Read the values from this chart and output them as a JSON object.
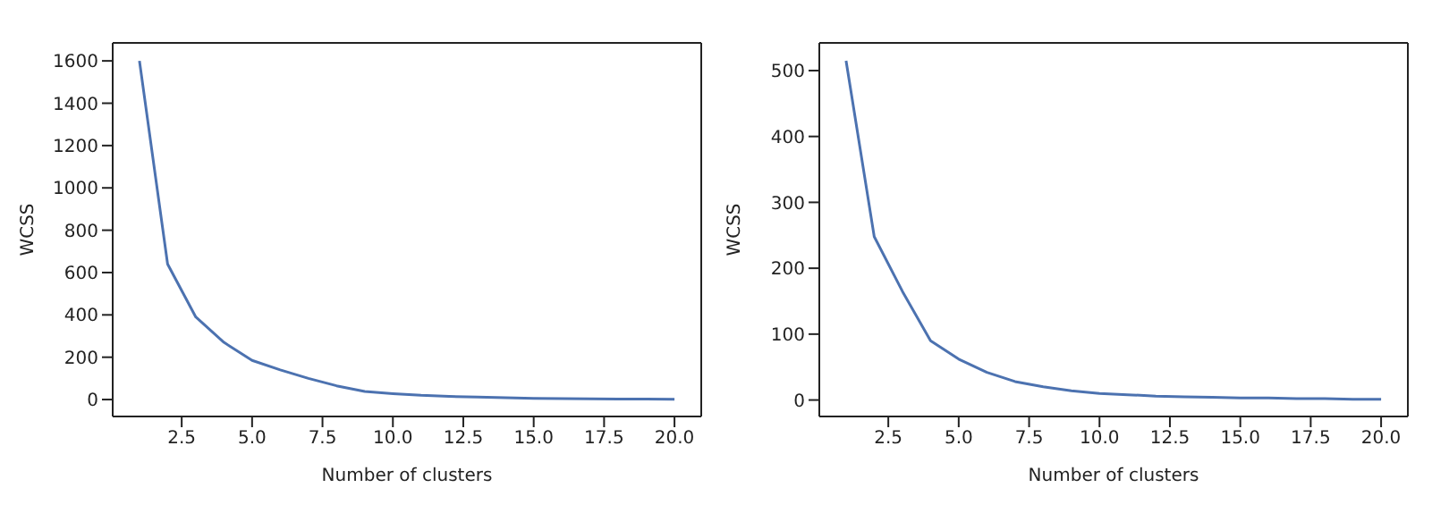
{
  "chart_data": [
    {
      "type": "line",
      "xlabel": "Number of clusters",
      "ylabel": "WCSS",
      "x": [
        1,
        2,
        3,
        4,
        5,
        6,
        7,
        8,
        9,
        10,
        11,
        12,
        13,
        14,
        15,
        16,
        17,
        18,
        19,
        20
      ],
      "series": [
        {
          "color": "#4c72b0",
          "values": [
            1600,
            640,
            390,
            270,
            185,
            140,
            100,
            65,
            38,
            28,
            20,
            15,
            12,
            9,
            6,
            4,
            3,
            2,
            2,
            1
          ]
        }
      ],
      "xlim": [
        0.05,
        20.95
      ],
      "xticks": [
        2.5,
        {
          "value": 5,
          "label": "5.0"
        },
        7.5,
        {
          "value": 10,
          "label": "10.0"
        },
        12.5,
        {
          "value": 15,
          "label": "15.0"
        },
        17.5,
        {
          "value": 20,
          "label": "20.0"
        }
      ],
      "ylim": [
        -80,
        1685
      ],
      "yticks": [
        0,
        200,
        400,
        600,
        800,
        1000,
        1200,
        1400,
        1600
      ],
      "grid": false,
      "legend": false,
      "marker": "none",
      "line_style": "solid"
    },
    {
      "type": "line",
      "xlabel": "Number of clusters",
      "ylabel": "WCSS",
      "x": [
        1,
        2,
        3,
        4,
        5,
        6,
        7,
        8,
        9,
        10,
        11,
        12,
        13,
        14,
        15,
        16,
        17,
        18,
        19,
        20
      ],
      "series": [
        {
          "color": "#4c72b0",
          "values": [
            515,
            248,
            165,
            90,
            62,
            42,
            28,
            20,
            14,
            10,
            8,
            6,
            5,
            4,
            3,
            3,
            2,
            2,
            1,
            1
          ]
        }
      ],
      "xlim": [
        0.05,
        20.95
      ],
      "xticks": [
        2.5,
        {
          "value": 5,
          "label": "5.0"
        },
        7.5,
        {
          "value": 10,
          "label": "10.0"
        },
        12.5,
        {
          "value": 15,
          "label": "15.0"
        },
        17.5,
        {
          "value": 20,
          "label": "20.0"
        }
      ],
      "ylim": [
        -25,
        542
      ],
      "yticks": [
        0,
        100,
        200,
        300,
        400,
        500
      ],
      "grid": false,
      "legend": false,
      "marker": "none",
      "line_style": "solid"
    }
  ]
}
